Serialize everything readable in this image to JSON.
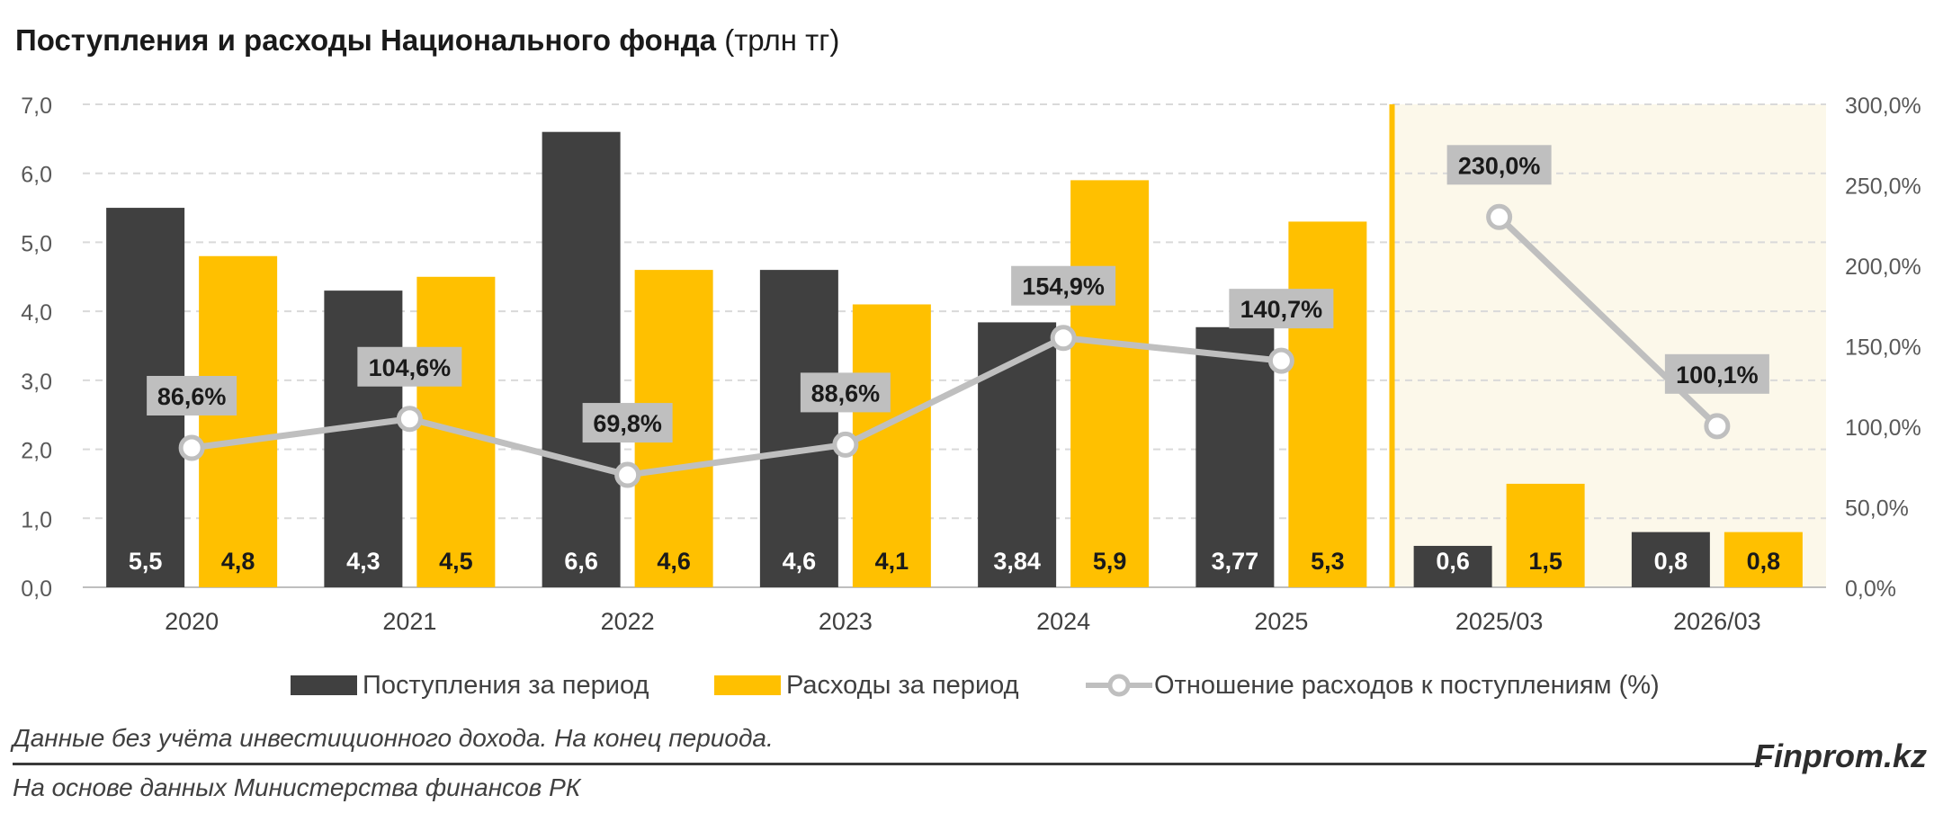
{
  "title_bold": "Поступления и расходы Национального фонда",
  "title_unit": "(трлн тг)",
  "colors": {
    "income": "#404040",
    "expense": "#FFC000",
    "ratio_line": "#BFBFBF",
    "label_box": "#BFBFBF",
    "forecast_bg": "#FCF8EA",
    "divider": "#FFC000",
    "grid": "#D9D9D9",
    "axis_text": "#595959"
  },
  "chart_data": {
    "type": "bar",
    "categories": [
      "2020",
      "2021",
      "2022",
      "2023",
      "2024",
      "2025",
      "2025/03",
      "2026/03"
    ],
    "series": [
      {
        "name": "Поступления за период",
        "values": [
          5.5,
          4.3,
          6.6,
          4.6,
          3.84,
          3.77,
          0.6,
          0.8
        ],
        "labels": [
          "5,5",
          "4,3",
          "6,6",
          "4,6",
          "3,84",
          "3,77",
          "0,6",
          "0,8"
        ]
      },
      {
        "name": "Расходы за период",
        "values": [
          4.8,
          4.5,
          4.6,
          4.1,
          5.9,
          5.3,
          1.5,
          0.8
        ],
        "labels": [
          "4,8",
          "4,5",
          "4,6",
          "4,1",
          "5,9",
          "5,3",
          "1,5",
          "0,8"
        ]
      },
      {
        "name": "Отношение расходов к поступлениям (%)",
        "type": "line",
        "axis": "right",
        "values": [
          86.6,
          104.6,
          69.8,
          88.6,
          154.9,
          140.7,
          230.0,
          100.1
        ],
        "labels": [
          "86,6%",
          "104,6%",
          "69,8%",
          "88,6%",
          "154,9%",
          "140,7%",
          "230,0%",
          "100,1%"
        ]
      }
    ],
    "y_left": {
      "min": 0,
      "max": 7,
      "ticks": [
        "0,0",
        "1,0",
        "2,0",
        "3,0",
        "4,0",
        "5,0",
        "6,0",
        "7,0"
      ]
    },
    "y_right": {
      "min": 0,
      "max": 300,
      "ticks": [
        "0,0%",
        "50,0%",
        "100,0%",
        "150,0%",
        "200,0%",
        "250,0%",
        "300,0%"
      ]
    },
    "grid": true,
    "legend": "bottom",
    "forecast_from_index": 6
  },
  "note": "Данные без учёта инвестиционного дохода. На конец периода.",
  "brand": "Finprom.kz",
  "source": "На основе данных Министерства финансов РК"
}
